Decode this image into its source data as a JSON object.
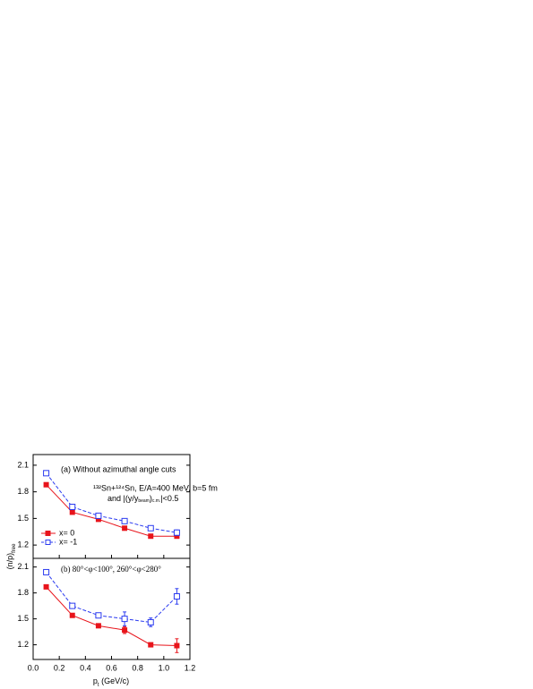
{
  "chart_data": [
    {
      "type": "line",
      "annotations": [
        "(a)  Without azimuthal angle cuts",
        "¹³²Sn+¹²⁴Sn, E/A=400 MeV, b=5 fm",
        "and |(y/y",
        "beam",
        ")",
        "c.m.",
        "|<0.5"
      ],
      "x": [
        0.1,
        0.3,
        0.5,
        0.7,
        0.9,
        1.1
      ],
      "xlim": [
        0,
        1.2
      ],
      "ylim": [
        1.05,
        2.22
      ],
      "yticks": [
        1.2,
        1.5,
        1.8,
        2.1
      ],
      "legend": "lower left",
      "series": [
        {
          "name": "x= 0",
          "color": "#e8141b",
          "values": [
            1.88,
            1.57,
            1.49,
            1.39,
            1.3,
            1.3
          ],
          "errors": [
            0.02,
            0.02,
            0.02,
            0.02,
            0.02,
            0.02
          ]
        },
        {
          "name": "x= -1",
          "color": "#2b3bf0",
          "values": [
            2.01,
            1.63,
            1.53,
            1.47,
            1.39,
            1.34
          ],
          "errors": [
            0.02,
            0.02,
            0.02,
            0.02,
            0.02,
            0.03
          ]
        }
      ]
    },
    {
      "type": "line",
      "annotations": [
        "(b)  80°<φ<100°, 260°<φ<280°"
      ],
      "x": [
        0.1,
        0.3,
        0.5,
        0.7,
        0.9,
        1.1
      ],
      "xlim": [
        0,
        1.2
      ],
      "xticks": [
        {
          "value": 0,
          "label": "0.0"
        },
        0.2,
        0.4,
        0.6,
        0.8,
        {
          "value": 1,
          "label": "1.0"
        },
        1.2
      ],
      "ylim": [
        1.03,
        2.2
      ],
      "yticks": [
        1.2,
        1.5,
        1.8,
        2.1
      ],
      "series": [
        {
          "color": "#e8141b",
          "values": [
            1.87,
            1.54,
            1.42,
            1.37,
            1.2,
            1.19
          ],
          "errors": [
            0.02,
            0.02,
            0.02,
            0.04,
            0.02,
            0.08
          ]
        },
        {
          "color": "#2b3bf0",
          "values": [
            2.04,
            1.65,
            1.54,
            1.5,
            1.46,
            1.76
          ],
          "errors": [
            0.02,
            0.02,
            0.02,
            0.08,
            0.05,
            0.09
          ]
        }
      ]
    }
  ],
  "y_label": {
    "text": "(n/p)",
    "sub": "free"
  },
  "x_label": {
    "text": "p",
    "sub": "t",
    "rest": " (GeV/c)"
  }
}
